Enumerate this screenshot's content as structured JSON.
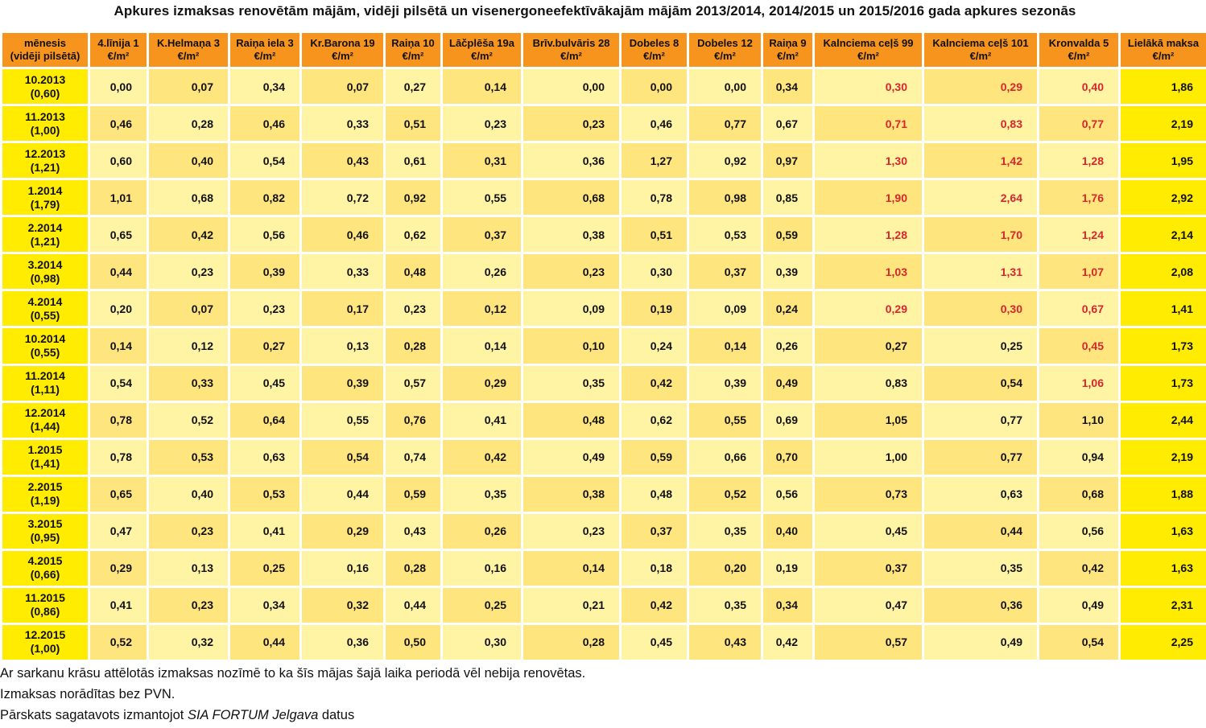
{
  "title": "Apkures izmaksas renovētām mājām, vidēji pilsētā un visenergoneefektīvākajām mājām 2013/2014, 2014/2015 un 2015/2016 gada apkures sezonās",
  "chart_data": {
    "type": "table",
    "corner_header": [
      "mēnesis",
      "(vidēji pilsētā)"
    ],
    "columns": [
      {
        "name": "4.līnija 1",
        "unit": "€/m²"
      },
      {
        "name": "K.Helmaņa 3",
        "unit": "€/m²"
      },
      {
        "name": "Raiņa iela 3",
        "unit": "€/m²"
      },
      {
        "name": "Kr.Barona 19",
        "unit": "€/m²"
      },
      {
        "name": "Raiņa 10",
        "unit": "€/m²"
      },
      {
        "name": "Lāčplēša 19a",
        "unit": "€/m²"
      },
      {
        "name": "Brīv.bulvāris 28",
        "unit": "€/m²"
      },
      {
        "name": "Dobeles 8",
        "unit": "€/m²"
      },
      {
        "name": "Dobeles 12",
        "unit": "€/m²"
      },
      {
        "name": "Raiņa 9",
        "unit": "€/m²"
      },
      {
        "name": "Kalnciema ceļš 99",
        "unit": "€/m²"
      },
      {
        "name": "Kalnciema ceļš 101",
        "unit": "€/m²"
      },
      {
        "name": "Kronvalda 5",
        "unit": "€/m²"
      },
      {
        "name": "Lielākā maksa",
        "unit": "€/m²"
      }
    ],
    "rows": [
      {
        "month": "10.2013",
        "city_avg": "(0,60)",
        "values": [
          "0,00",
          "0,07",
          "0,34",
          "0,07",
          "0,27",
          "0,14",
          "0,00",
          "0,00",
          "0,00",
          "0,34",
          "0,30",
          "0,29",
          "0,40",
          "1,86"
        ],
        "red": [
          10,
          11,
          12
        ]
      },
      {
        "month": "11.2013",
        "city_avg": "(1,00)",
        "values": [
          "0,46",
          "0,28",
          "0,46",
          "0,33",
          "0,51",
          "0,23",
          "0,23",
          "0,46",
          "0,77",
          "0,67",
          "0,71",
          "0,83",
          "0,77",
          "2,19"
        ],
        "red": [
          10,
          11,
          12
        ]
      },
      {
        "month": "12.2013",
        "city_avg": "(1,21)",
        "values": [
          "0,60",
          "0,40",
          "0,54",
          "0,43",
          "0,61",
          "0,31",
          "0,36",
          "1,27",
          "0,92",
          "0,97",
          "1,30",
          "1,42",
          "1,28",
          "1,95"
        ],
        "red": [
          10,
          11,
          12
        ]
      },
      {
        "month": "1.2014",
        "city_avg": "(1,79)",
        "values": [
          "1,01",
          "0,68",
          "0,82",
          "0,72",
          "0,92",
          "0,55",
          "0,68",
          "0,78",
          "0,98",
          "0,85",
          "1,90",
          "2,64",
          "1,76",
          "2,92"
        ],
        "red": [
          10,
          11,
          12
        ]
      },
      {
        "month": "2.2014",
        "city_avg": "(1,21)",
        "values": [
          "0,65",
          "0,42",
          "0,56",
          "0,46",
          "0,62",
          "0,37",
          "0,38",
          "0,51",
          "0,53",
          "0,59",
          "1,28",
          "1,70",
          "1,24",
          "2,14"
        ],
        "red": [
          10,
          11,
          12
        ]
      },
      {
        "month": "3.2014",
        "city_avg": "(0,98)",
        "values": [
          "0,44",
          "0,23",
          "0,39",
          "0,33",
          "0,48",
          "0,26",
          "0,23",
          "0,30",
          "0,37",
          "0,39",
          "1,03",
          "1,31",
          "1,07",
          "2,08"
        ],
        "red": [
          10,
          11,
          12
        ]
      },
      {
        "month": "4.2014",
        "city_avg": "(0,55)",
        "values": [
          "0,20",
          "0,07",
          "0,23",
          "0,17",
          "0,23",
          "0,12",
          "0,09",
          "0,19",
          "0,09",
          "0,24",
          "0,29",
          "0,30",
          "0,67",
          "1,41"
        ],
        "red": [
          10,
          11,
          12
        ]
      },
      {
        "month": "10.2014",
        "city_avg": "(0,55)",
        "values": [
          "0,14",
          "0,12",
          "0,27",
          "0,13",
          "0,28",
          "0,14",
          "0,10",
          "0,24",
          "0,14",
          "0,26",
          "0,27",
          "0,25",
          "0,45",
          "1,73"
        ],
        "red": [
          12
        ]
      },
      {
        "month": "11.2014",
        "city_avg": "(1,11)",
        "values": [
          "0,54",
          "0,33",
          "0,45",
          "0,39",
          "0,57",
          "0,29",
          "0,35",
          "0,42",
          "0,39",
          "0,49",
          "0,83",
          "0,54",
          "1,06",
          "1,73"
        ],
        "red": [
          12
        ]
      },
      {
        "month": "12.2014",
        "city_avg": "(1,44)",
        "values": [
          "0,78",
          "0,52",
          "0,64",
          "0,55",
          "0,76",
          "0,41",
          "0,48",
          "0,62",
          "0,55",
          "0,69",
          "1,05",
          "0,77",
          "1,10",
          "2,44"
        ],
        "red": []
      },
      {
        "month": "1.2015",
        "city_avg": "(1,41)",
        "values": [
          "0,78",
          "0,53",
          "0,63",
          "0,54",
          "0,74",
          "0,42",
          "0,49",
          "0,59",
          "0,66",
          "0,70",
          "1,00",
          "0,77",
          "0,94",
          "2,19"
        ],
        "red": []
      },
      {
        "month": "2.2015",
        "city_avg": "(1,19)",
        "values": [
          "0,65",
          "0,40",
          "0,53",
          "0,44",
          "0,59",
          "0,35",
          "0,38",
          "0,48",
          "0,52",
          "0,56",
          "0,73",
          "0,63",
          "0,68",
          "1,88"
        ],
        "red": []
      },
      {
        "month": "3.2015",
        "city_avg": "(0,95)",
        "values": [
          "0,47",
          "0,23",
          "0,41",
          "0,29",
          "0,43",
          "0,26",
          "0,23",
          "0,37",
          "0,35",
          "0,40",
          "0,45",
          "0,44",
          "0,56",
          "1,63"
        ],
        "red": []
      },
      {
        "month": "4.2015",
        "city_avg": "(0,66)",
        "values": [
          "0,29",
          "0,13",
          "0,25",
          "0,16",
          "0,28",
          "0,16",
          "0,14",
          "0,18",
          "0,20",
          "0,19",
          "0,37",
          "0,35",
          "0,42",
          "1,63"
        ],
        "red": []
      },
      {
        "month": "11.2015",
        "city_avg": "(0,86)",
        "values": [
          "0,41",
          "0,23",
          "0,34",
          "0,32",
          "0,44",
          "0,25",
          "0,21",
          "0,42",
          "0,35",
          "0,34",
          "0,47",
          "0,36",
          "0,49",
          "2,31"
        ],
        "red": []
      },
      {
        "month": "12.2015",
        "city_avg": "(1,00)",
        "values": [
          "0,52",
          "0,32",
          "0,44",
          "0,36",
          "0,50",
          "0,30",
          "0,28",
          "0,45",
          "0,43",
          "0,42",
          "0,57",
          "0,49",
          "0,54",
          "2,25"
        ],
        "red": []
      }
    ]
  },
  "colors": {
    "header": "#f7941d",
    "label_column": "#ffec00",
    "max_column": "#ffec00",
    "light_cell": "#fff3a4",
    "dark_cell": "#ffe57d",
    "not_renovated_text": "#d7262d"
  },
  "notes": {
    "line1": "Ar sarkanu krāsu attēlotās izmaksas nozīmē to ka šīs mājas šajā laika periodā vēl nebija renovētas.",
    "line2": "Izmaksas norādītas bez PVN.",
    "line3_prefix": "Pārskats sagatavots izmantojot ",
    "line3_source": "SIA FORTUM Jelgava",
    "line3_suffix": " datus"
  }
}
